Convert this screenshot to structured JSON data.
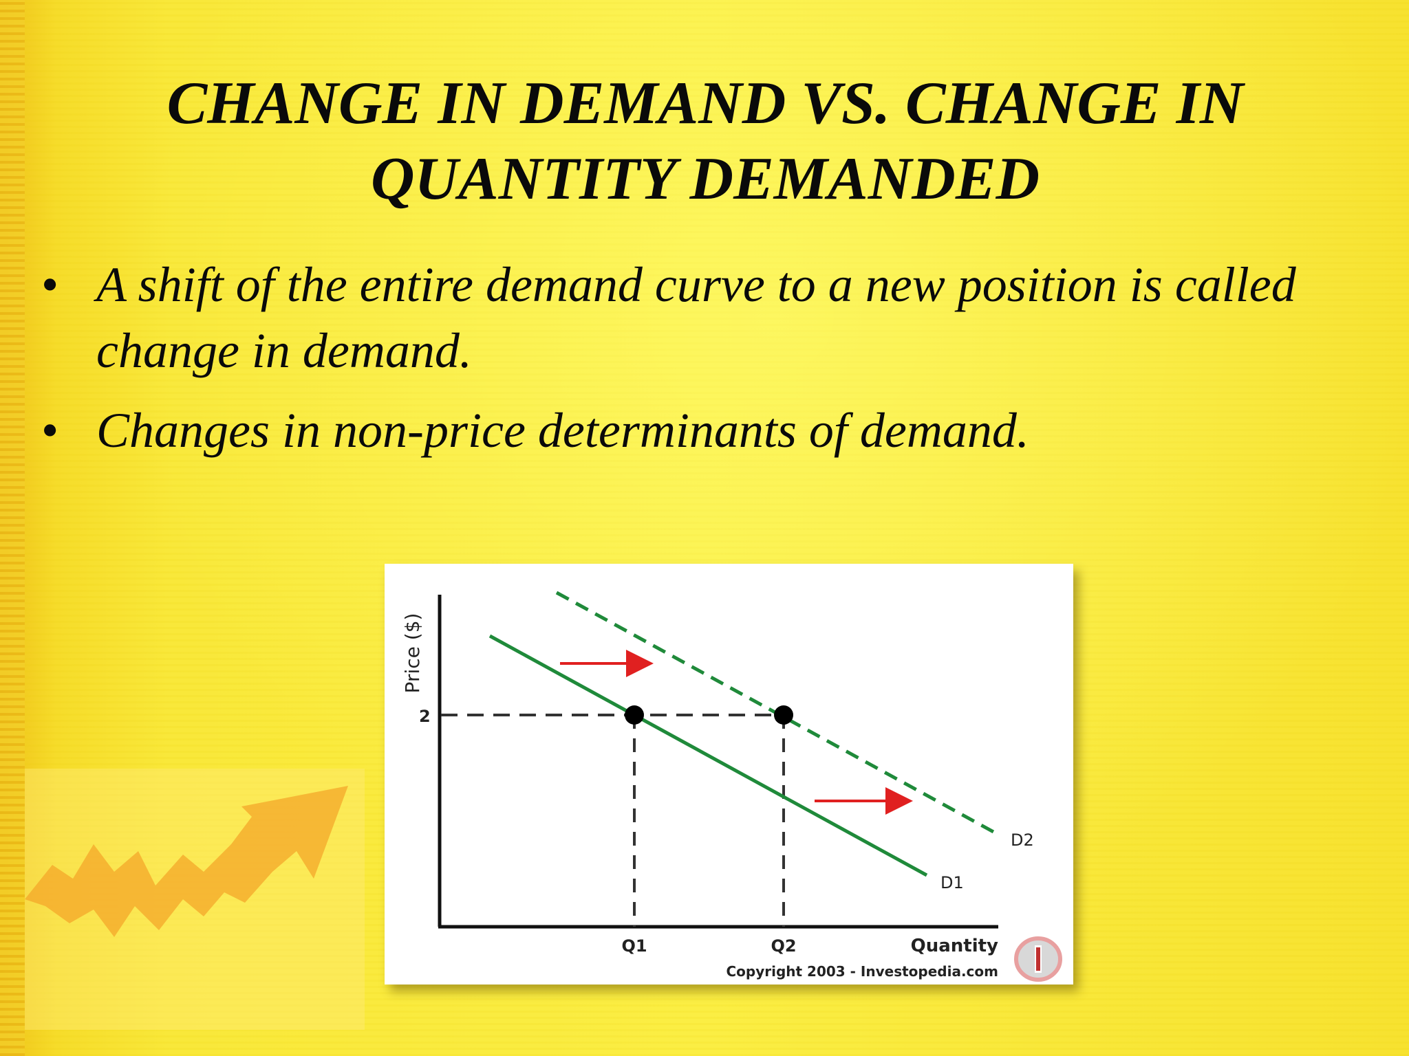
{
  "slide": {
    "title": "CHANGE IN DEMAND VS. CHANGE IN QUANTITY DEMANDED",
    "bullets": [
      "A shift of the entire demand curve to a new position is called change in demand.",
      "Changes in non-price determinants of demand."
    ],
    "bullet_symbol": "•"
  },
  "figure": {
    "y_axis_label": "Price ($)",
    "x_axis_label": "Quantity",
    "price_tick": "2",
    "q1_label": "Q1",
    "q2_label": "Q2",
    "d1_label": "D1",
    "d2_label": "D2",
    "copyright": "Copyright 2003 - Investopedia.com",
    "curve_color": "#1f8a3a",
    "arrow_color": "#e02020",
    "icons": [
      "investopedia-logo-icon",
      "rising-arrow-icon"
    ]
  },
  "colors": {
    "background": "#f7e530",
    "text": "#0a0a0a"
  }
}
